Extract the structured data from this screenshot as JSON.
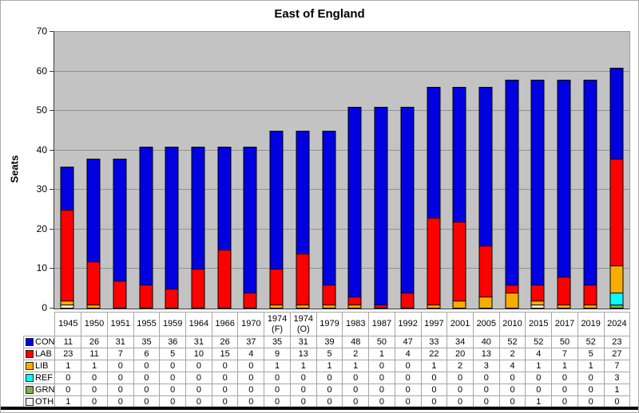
{
  "chart_data": {
    "type": "bar",
    "stacked": true,
    "title": "East of England",
    "xlabel": "",
    "ylabel": "Seats",
    "ylim": [
      0,
      70
    ],
    "yticks": [
      0,
      10,
      20,
      30,
      40,
      50,
      60,
      70
    ],
    "grid": true,
    "plot_bg_color": "#c3c3c3",
    "grid_color": "#919191",
    "legend_position": "table-left",
    "categories": [
      "1945",
      "1950",
      "1951",
      "1955",
      "1959",
      "1964",
      "1966",
      "1970",
      "1974 (F)",
      "1974 (O)",
      "1979",
      "1983",
      "1987",
      "1992",
      "1997",
      "2001",
      "2005",
      "2010",
      "2015",
      "2017",
      "2019",
      "2024"
    ],
    "series": [
      {
        "name": "CON",
        "color": "#0000E0",
        "values": [
          11,
          26,
          31,
          35,
          36,
          31,
          26,
          37,
          35,
          31,
          39,
          48,
          50,
          47,
          33,
          34,
          40,
          52,
          52,
          50,
          52,
          23
        ]
      },
      {
        "name": "LAB",
        "color": "#FF0000",
        "values": [
          23,
          11,
          7,
          6,
          5,
          10,
          15,
          4,
          9,
          13,
          5,
          2,
          1,
          4,
          22,
          20,
          13,
          2,
          4,
          7,
          5,
          27
        ]
      },
      {
        "name": "LIB",
        "color": "#F7AD00",
        "values": [
          1,
          1,
          0,
          0,
          0,
          0,
          0,
          0,
          1,
          1,
          1,
          1,
          0,
          0,
          1,
          2,
          3,
          4,
          1,
          1,
          1,
          7
        ]
      },
      {
        "name": "REF",
        "color": "#00FFFF",
        "values": [
          0,
          0,
          0,
          0,
          0,
          0,
          0,
          0,
          0,
          0,
          0,
          0,
          0,
          0,
          0,
          0,
          0,
          0,
          0,
          0,
          0,
          3
        ]
      },
      {
        "name": "GRN",
        "color": "#7DB249",
        "values": [
          0,
          0,
          0,
          0,
          0,
          0,
          0,
          0,
          0,
          0,
          0,
          0,
          0,
          0,
          0,
          0,
          0,
          0,
          0,
          0,
          0,
          1
        ]
      },
      {
        "name": "OTH",
        "color": "#F4F4F4",
        "values": [
          1,
          0,
          0,
          0,
          0,
          0,
          0,
          0,
          0,
          0,
          0,
          0,
          0,
          0,
          0,
          0,
          0,
          0,
          1,
          0,
          0,
          0
        ]
      }
    ]
  }
}
